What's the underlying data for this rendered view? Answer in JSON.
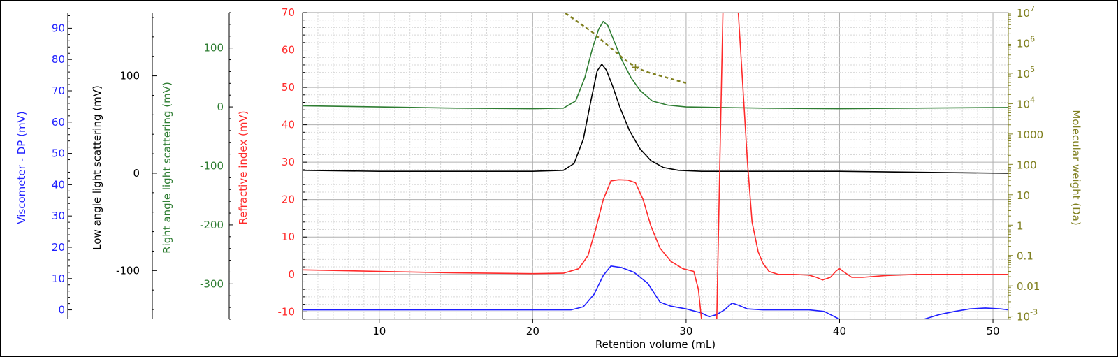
{
  "chart_data": {
    "type": "line",
    "xlabel": "Retention volume (mL)",
    "xlim": [
      5,
      51
    ],
    "x_ticks": [
      10,
      20,
      30,
      40,
      50
    ],
    "axes": {
      "viscometer": {
        "label": "Viscometer - DP (mV)",
        "color": "#1f1fff",
        "range": [
          -3,
          95
        ],
        "ticks": [
          0,
          10,
          20,
          30,
          40,
          50,
          60,
          70,
          80,
          90
        ]
      },
      "lals": {
        "label": "Low angle light scattering (mV)",
        "color": "#000000",
        "range": [
          -150,
          165
        ],
        "ticks": [
          -100,
          0,
          100
        ]
      },
      "rals": {
        "label": "Right angle light scattering (mV)",
        "color": "#2e7d32",
        "range": [
          -360,
          160
        ],
        "ticks": [
          -300,
          -200,
          -100,
          0,
          100
        ]
      },
      "ri": {
        "label": "Refractive index (mV)",
        "color": "#ff2a2a",
        "range": [
          -12,
          70
        ],
        "ticks": [
          -10,
          0,
          10,
          20,
          30,
          40,
          50,
          60,
          70
        ]
      },
      "mw": {
        "label": "Molecular weight (Da)",
        "color": "#808020",
        "log_exponent_range": [
          -3.1,
          7
        ],
        "ticks": [
          {
            "base": "10",
            "exp": "7"
          },
          {
            "base": "10",
            "exp": "6"
          },
          {
            "base": "10",
            "exp": "5"
          },
          {
            "base": "10",
            "exp": "4"
          },
          {
            "base": "1000",
            "exp": ""
          },
          {
            "base": "100",
            "exp": ""
          },
          {
            "base": "10",
            "exp": ""
          },
          {
            "base": "1",
            "exp": ""
          },
          {
            "base": "0.1",
            "exp": ""
          },
          {
            "base": "0.01",
            "exp": ""
          },
          {
            "base": "10",
            "exp": "-3"
          }
        ],
        "tick_exponents": [
          7,
          6,
          5,
          4,
          3,
          2,
          1,
          0,
          -1,
          -2,
          -3
        ]
      }
    },
    "series": [
      {
        "axis": "viscometer",
        "x": [
          5,
          10,
          15,
          20,
          22.5,
          23.3,
          24.0,
          24.6,
          25.1,
          25.8,
          26.6,
          27.5,
          28.3,
          29.0,
          30,
          31.0,
          31.5,
          32.0,
          32.5,
          33.0,
          33.4,
          34.0,
          35,
          36,
          38,
          39,
          40,
          41
        ],
        "y": [
          0,
          0,
          0,
          0,
          0,
          1,
          5,
          11,
          14,
          13.5,
          12,
          8.5,
          2.5,
          1.2,
          0.3,
          -1,
          -2.2,
          -1.5,
          0,
          2.2,
          1.5,
          0.3,
          0,
          0,
          0,
          -0.5,
          -3,
          -5
        ]
      },
      {
        "axis": "viscometer",
        "x": [
          45.5,
          46.5,
          47.5,
          48.5,
          49.5,
          50.5,
          51
        ],
        "y": [
          -3,
          -1.5,
          -0.5,
          0.3,
          0.6,
          0.3,
          0
        ]
      },
      {
        "axis": "lals",
        "x": [
          5,
          10,
          15,
          20,
          22.0,
          22.7,
          23.3,
          23.8,
          24.2,
          24.5,
          24.8,
          25.2,
          25.7,
          26.3,
          27.0,
          27.7,
          28.5,
          29.5,
          31,
          35,
          40,
          45,
          51
        ],
        "y": [
          3,
          2,
          2,
          2,
          3,
          10,
          35,
          75,
          105,
          112,
          106,
          90,
          67,
          44,
          25,
          13,
          6,
          3,
          2,
          2,
          2,
          1,
          0
        ]
      },
      {
        "axis": "rals",
        "x": [
          5,
          10,
          15,
          20,
          22.0,
          22.8,
          23.4,
          23.9,
          24.3,
          24.6,
          24.9,
          25.3,
          25.8,
          26.4,
          27.0,
          27.8,
          28.8,
          30,
          35,
          40,
          45,
          51
        ],
        "y": [
          2,
          0,
          -2,
          -3,
          -2,
          10,
          50,
          100,
          132,
          145,
          138,
          112,
          80,
          50,
          28,
          10,
          3,
          0,
          -2,
          -3,
          -2,
          -1
        ]
      },
      {
        "axis": "ri",
        "x": [
          5,
          10,
          15,
          20,
          22.0,
          23.0,
          23.6,
          24.1,
          24.6,
          25.1,
          25.6,
          26.2,
          26.7,
          27.2,
          27.7,
          28.3,
          29.0,
          29.8,
          30.5,
          30.8,
          31.0,
          32.0,
          32.2,
          32.4,
          33.0,
          33.4,
          33.7,
          34.0,
          34.3,
          34.7,
          35.0,
          35.4,
          36.0,
          37,
          38.0,
          38.5,
          38.9,
          39.4,
          39.8,
          40.0,
          40.3,
          40.8,
          41.5,
          43,
          45,
          48,
          51
        ],
        "y": [
          1.2,
          0.8,
          0.4,
          0.2,
          0.3,
          1.5,
          5,
          12,
          20,
          25,
          25.3,
          25.2,
          24.5,
          20,
          13,
          7,
          3.5,
          1.5,
          0.8,
          -4,
          -12,
          -12,
          30,
          70,
          70,
          70,
          50,
          30,
          14,
          6,
          3,
          0.8,
          0,
          0,
          -0.2,
          -0.8,
          -1.5,
          -0.8,
          1,
          1.5,
          0.6,
          -0.8,
          -0.8,
          -0.3,
          0,
          0,
          0
        ]
      },
      {
        "axis": "mw",
        "x": [
          21.8,
          22.5,
          23.2,
          23.9,
          24.6,
          25.3,
          26.0,
          26.7,
          27.4,
          28.1,
          28.8,
          29.5,
          30.0
        ],
        "y": [
          7.1,
          6.85,
          6.6,
          6.35,
          6.05,
          5.75,
          5.45,
          5.2,
          5.05,
          4.95,
          4.85,
          4.75,
          4.68
        ]
      }
    ]
  }
}
